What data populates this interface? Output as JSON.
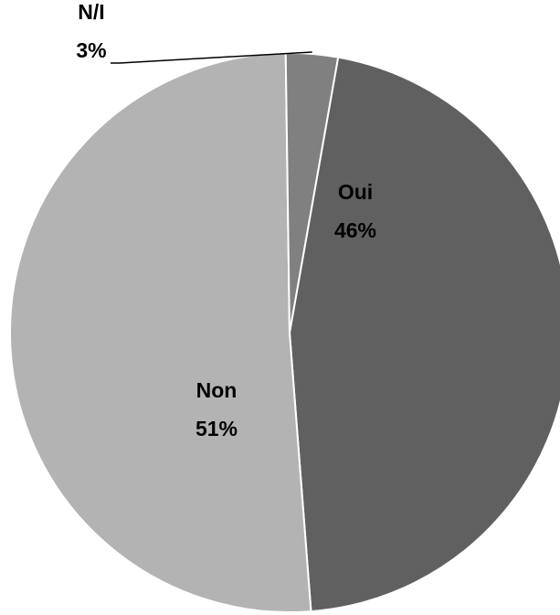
{
  "chart_data": {
    "type": "pie",
    "slices": [
      {
        "label": "Oui",
        "value": 46,
        "value_label": "46%",
        "color": "#606060"
      },
      {
        "label": "Non",
        "value": 51,
        "value_label": "51%",
        "color": "#b3b3b3"
      },
      {
        "label": "N/I",
        "value": 3,
        "value_label": "3%",
        "color": "#808080"
      }
    ],
    "legend": "none",
    "start": "top, clockwise",
    "edge_color": "#ffffff",
    "leader_line_color": "#000000"
  }
}
